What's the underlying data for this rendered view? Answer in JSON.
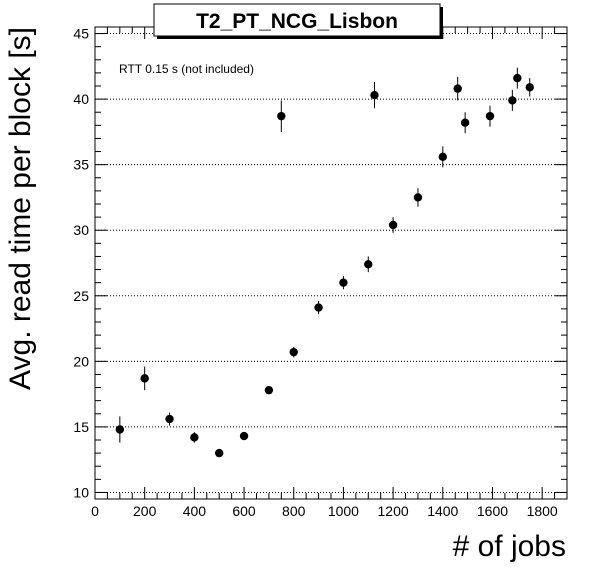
{
  "chart_data": {
    "type": "scatter",
    "title": "T2_PT_NCG_Lisbon",
    "xlabel": "# of jobs",
    "ylabel": "Avg. read time per block [s]",
    "annotation": "RTT 0.15 s (not included)",
    "xlim": [
      0,
      1900
    ],
    "ylim": [
      9.5,
      45.5
    ],
    "x_ticks": [
      0,
      200,
      400,
      600,
      800,
      1000,
      1200,
      1400,
      1600,
      1800
    ],
    "y_ticks": [
      10,
      15,
      20,
      25,
      30,
      35,
      40,
      45
    ],
    "grid": {
      "x": false,
      "y": true,
      "style": "dotted"
    },
    "marker": "filled-circle",
    "points": [
      {
        "x": 100,
        "y": 14.8,
        "err": 1.0
      },
      {
        "x": 200,
        "y": 18.7,
        "err": 0.9
      },
      {
        "x": 300,
        "y": 15.6,
        "err": 0.5
      },
      {
        "x": 400,
        "y": 14.2,
        "err": 0.4
      },
      {
        "x": 500,
        "y": 13.0,
        "err": 0.3
      },
      {
        "x": 600,
        "y": 14.3,
        "err": 0.3
      },
      {
        "x": 700,
        "y": 17.8,
        "err": 0.3
      },
      {
        "x": 750,
        "y": 38.7,
        "err": 1.2
      },
      {
        "x": 800,
        "y": 20.7,
        "err": 0.4
      },
      {
        "x": 900,
        "y": 24.1,
        "err": 0.5
      },
      {
        "x": 1000,
        "y": 26.0,
        "err": 0.5
      },
      {
        "x": 1100,
        "y": 27.4,
        "err": 0.6
      },
      {
        "x": 1125,
        "y": 40.3,
        "err": 1.0
      },
      {
        "x": 1200,
        "y": 30.4,
        "err": 0.6
      },
      {
        "x": 1300,
        "y": 32.5,
        "err": 0.7
      },
      {
        "x": 1400,
        "y": 35.6,
        "err": 0.8
      },
      {
        "x": 1460,
        "y": 40.8,
        "err": 0.9
      },
      {
        "x": 1490,
        "y": 38.2,
        "err": 0.8
      },
      {
        "x": 1590,
        "y": 38.7,
        "err": 0.8
      },
      {
        "x": 1680,
        "y": 39.9,
        "err": 0.8
      },
      {
        "x": 1700,
        "y": 41.6,
        "err": 0.8
      },
      {
        "x": 1750,
        "y": 40.9,
        "err": 0.7
      }
    ]
  }
}
